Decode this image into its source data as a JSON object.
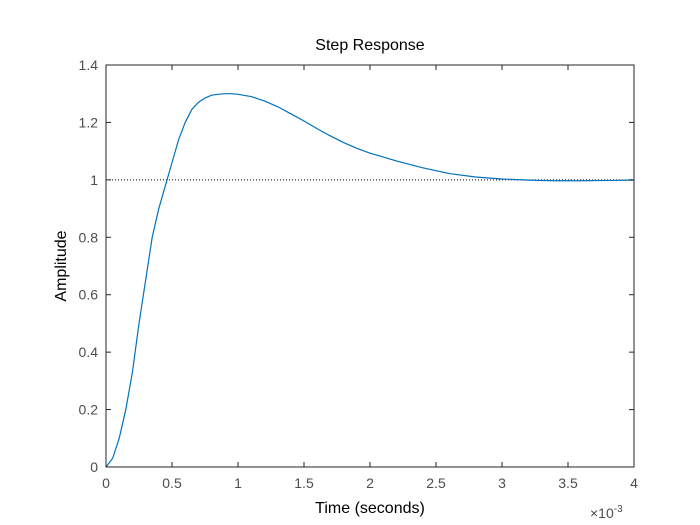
{
  "chart_data": {
    "type": "line",
    "title": "Step Response",
    "xlabel": "Time (seconds)",
    "ylabel": "Amplitude",
    "x_scale_multiplier": {
      "base": "×10",
      "exponent": "-3"
    },
    "xlim": [
      0,
      4
    ],
    "ylim": [
      0,
      1.4
    ],
    "xticks": [
      0,
      0.5,
      1,
      1.5,
      2,
      2.5,
      3,
      3.5,
      4
    ],
    "xtick_labels": [
      "0",
      "0.5",
      "1",
      "1.5",
      "2",
      "2.5",
      "3",
      "3.5",
      "4"
    ],
    "yticks": [
      0,
      0.2,
      0.4,
      0.6,
      0.8,
      1,
      1.2,
      1.4
    ],
    "ytick_labels": [
      "0",
      "0.2",
      "0.4",
      "0.6",
      "0.8",
      "1",
      "1.2",
      "1.4"
    ],
    "grid": false,
    "reference_line": {
      "y": 1,
      "style": "dotted",
      "color": "#000000"
    },
    "series": [
      {
        "color": "#0072bd",
        "x": [
          0,
          0.05,
          0.1,
          0.15,
          0.2,
          0.25,
          0.3,
          0.35,
          0.4,
          0.45,
          0.5,
          0.55,
          0.6,
          0.65,
          0.7,
          0.75,
          0.8,
          0.85,
          0.9,
          0.95,
          1.0,
          1.1,
          1.2,
          1.3,
          1.4,
          1.5,
          1.6,
          1.7,
          1.8,
          1.9,
          2.0,
          2.2,
          2.4,
          2.6,
          2.8,
          3.0,
          3.2,
          3.4,
          3.6,
          3.8,
          4.0
        ],
        "y": [
          0,
          0.03,
          0.1,
          0.2,
          0.33,
          0.5,
          0.65,
          0.8,
          0.9,
          0.98,
          1.06,
          1.14,
          1.2,
          1.245,
          1.27,
          1.285,
          1.295,
          1.298,
          1.3,
          1.3,
          1.298,
          1.29,
          1.275,
          1.255,
          1.23,
          1.205,
          1.178,
          1.153,
          1.13,
          1.11,
          1.093,
          1.066,
          1.042,
          1.022,
          1.01,
          1.003,
          0.999,
          0.997,
          0.997,
          0.998,
          0.999
        ]
      }
    ]
  }
}
